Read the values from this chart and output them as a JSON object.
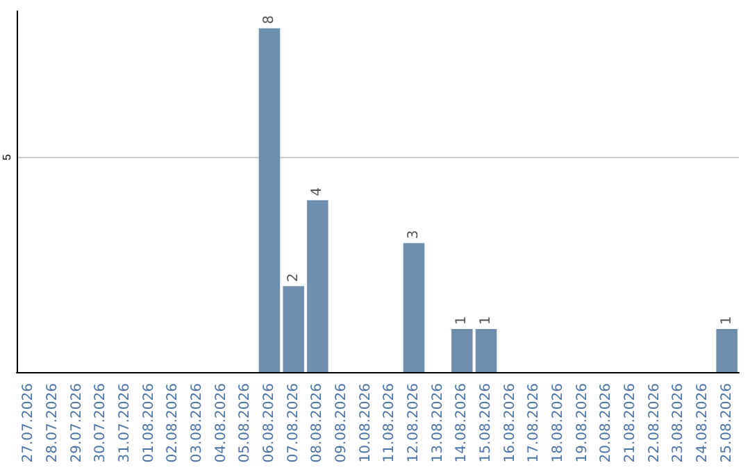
{
  "chart_data": {
    "type": "bar",
    "categories": [
      "27.07.2026",
      "28.07.2026",
      "29.07.2026",
      "30.07.2026",
      "31.07.2026",
      "01.08.2026",
      "02.08.2026",
      "03.08.2026",
      "04.08.2026",
      "05.08.2026",
      "06.08.2026",
      "07.08.2026",
      "08.08.2026",
      "09.08.2026",
      "10.08.2026",
      "11.08.2026",
      "12.08.2026",
      "13.08.2026",
      "14.08.2026",
      "15.08.2026",
      "16.08.2026",
      "17.08.2026",
      "18.08.2026",
      "19.08.2026",
      "20.08.2026",
      "21.08.2026",
      "22.08.2026",
      "23.08.2026",
      "24.08.2026",
      "25.08.2026"
    ],
    "values": [
      0,
      0,
      0,
      0,
      0,
      0,
      0,
      0,
      0,
      0,
      8,
      2,
      4,
      0,
      0,
      0,
      3,
      0,
      1,
      1,
      0,
      0,
      0,
      0,
      0,
      0,
      0,
      0,
      0,
      1
    ],
    "value_labels": [
      null,
      null,
      null,
      null,
      null,
      null,
      null,
      null,
      null,
      null,
      "8",
      "2",
      "4",
      null,
      null,
      null,
      "3",
      null,
      "1",
      "1",
      null,
      null,
      null,
      null,
      null,
      null,
      null,
      null,
      null,
      "1"
    ],
    "color": "#6d8fad",
    "ylim": [
      0,
      8.4
    ],
    "yticks": [
      5
    ],
    "grid": "y"
  }
}
